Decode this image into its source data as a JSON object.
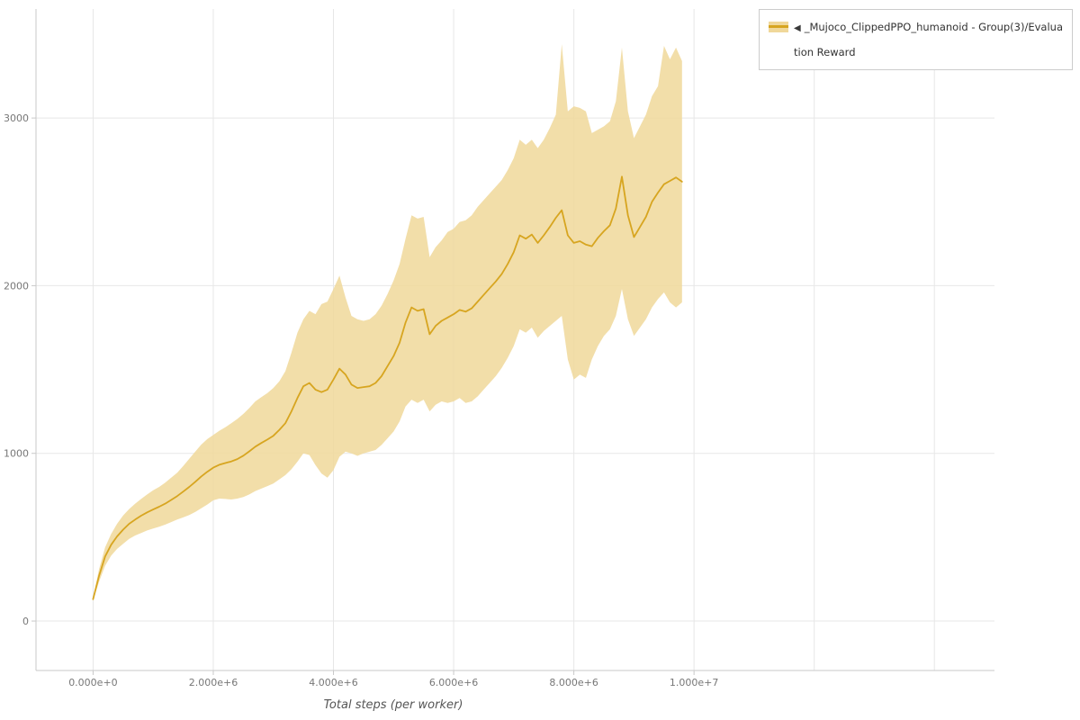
{
  "legend": {
    "marker": "◀",
    "label": "_Mujoco_ClippedPPO_humanoid - Group(3)/Evaluation Reward"
  },
  "chart_data": {
    "type": "line",
    "title": "",
    "xlabel": "Total steps (per worker)",
    "ylabel": "",
    "legend_position": "top-right-outside",
    "grid_on": true,
    "x_unit_note": "x values stored in millions of steps",
    "xlim_e6": [
      -0.95,
      15.0
    ],
    "ylim": [
      -295,
      3650
    ],
    "x_ticks": [
      {
        "v_e6": 0,
        "label": "0.000e+0"
      },
      {
        "v_e6": 2,
        "label": "2.000e+6"
      },
      {
        "v_e6": 4,
        "label": "4.000e+6"
      },
      {
        "v_e6": 6,
        "label": "6.000e+6"
      },
      {
        "v_e6": 8,
        "label": "8.000e+6"
      },
      {
        "v_e6": 10,
        "label": "1.000e+7"
      }
    ],
    "y_ticks": [
      {
        "v": 0,
        "label": "0"
      },
      {
        "v": 1000,
        "label": "1000"
      },
      {
        "v": 2000,
        "label": "2000"
      },
      {
        "v": 3000,
        "label": "3000"
      }
    ],
    "grid": {
      "x_e6": [
        0,
        2,
        4,
        6,
        8,
        10,
        12,
        14
      ],
      "y": [
        0,
        1000,
        2000,
        3000
      ]
    },
    "colors": {
      "line": "#d7a520",
      "band": "#f0d89a",
      "grid": "#e7e7e7",
      "axis": "#c9c9c9",
      "tick_text": "#777777"
    },
    "band_opacity": 0.85,
    "series": [
      {
        "name": "_Mujoco_ClippedPPO_humanoid - Group(3)/Evaluation Reward",
        "x_e6": [
          0,
          0.1,
          0.2,
          0.3,
          0.4,
          0.5,
          0.6,
          0.7,
          0.8,
          0.9,
          1,
          1.1,
          1.2,
          1.3,
          1.4,
          1.5,
          1.6,
          1.7,
          1.8,
          1.9,
          2,
          2.1,
          2.2,
          2.3,
          2.4,
          2.5,
          2.6,
          2.7,
          2.8,
          2.9,
          3,
          3.1,
          3.2,
          3.3,
          3.4,
          3.5,
          3.6,
          3.7,
          3.8,
          3.9,
          4,
          4.1,
          4.2,
          4.3,
          4.4,
          4.5,
          4.6,
          4.7,
          4.8,
          4.9,
          5,
          5.1,
          5.2,
          5.3,
          5.4,
          5.5,
          5.6,
          5.7,
          5.8,
          5.9,
          6,
          6.1,
          6.2,
          6.3,
          6.4,
          6.5,
          6.6,
          6.7,
          6.8,
          6.9,
          7,
          7.1,
          7.2,
          7.3,
          7.4,
          7.5,
          7.6,
          7.7,
          7.8,
          7.9,
          8,
          8.1,
          8.2,
          8.3,
          8.4,
          8.5,
          8.6,
          8.7,
          8.8,
          8.9,
          9,
          9.1,
          9.2,
          9.3,
          9.4,
          9.5,
          9.6,
          9.7,
          9.8
        ],
        "mean": [
          130,
          270,
          385,
          455,
          505,
          545,
          580,
          605,
          628,
          648,
          665,
          682,
          700,
          722,
          745,
          772,
          800,
          830,
          862,
          890,
          915,
          932,
          942,
          952,
          966,
          986,
          1012,
          1040,
          1062,
          1082,
          1105,
          1140,
          1180,
          1250,
          1330,
          1400,
          1420,
          1380,
          1365,
          1380,
          1440,
          1505,
          1470,
          1410,
          1390,
          1395,
          1400,
          1420,
          1460,
          1520,
          1580,
          1660,
          1780,
          1870,
          1850,
          1860,
          1710,
          1760,
          1790,
          1810,
          1830,
          1855,
          1845,
          1865,
          1905,
          1945,
          1985,
          2025,
          2070,
          2130,
          2200,
          2300,
          2280,
          2305,
          2255,
          2300,
          2350,
          2405,
          2450,
          2300,
          2255,
          2265,
          2245,
          2235,
          2285,
          2325,
          2360,
          2460,
          2650,
          2420,
          2290,
          2350,
          2410,
          2500,
          2555,
          2605,
          2625,
          2645,
          2620
        ],
        "band_lower": [
          120,
          235,
          330,
          390,
          430,
          460,
          490,
          510,
          525,
          540,
          552,
          562,
          575,
          590,
          605,
          618,
          632,
          650,
          672,
          695,
          720,
          730,
          728,
          725,
          730,
          740,
          755,
          775,
          790,
          805,
          820,
          845,
          870,
          905,
          950,
          1000,
          990,
          930,
          880,
          855,
          900,
          980,
          1010,
          1000,
          985,
          1000,
          1010,
          1020,
          1050,
          1090,
          1130,
          1190,
          1280,
          1320,
          1300,
          1320,
          1250,
          1290,
          1310,
          1300,
          1310,
          1330,
          1300,
          1310,
          1340,
          1380,
          1420,
          1460,
          1510,
          1570,
          1640,
          1740,
          1720,
          1750,
          1690,
          1730,
          1760,
          1790,
          1820,
          1560,
          1440,
          1470,
          1450,
          1560,
          1640,
          1700,
          1740,
          1820,
          1980,
          1800,
          1700,
          1750,
          1800,
          1870,
          1920,
          1960,
          1900,
          1870,
          1900
        ],
        "band_upper": [
          140,
          310,
          440,
          520,
          580,
          630,
          668,
          700,
          728,
          755,
          780,
          800,
          825,
          855,
          885,
          925,
          968,
          1010,
          1052,
          1085,
          1110,
          1135,
          1155,
          1180,
          1205,
          1235,
          1270,
          1310,
          1335,
          1360,
          1390,
          1430,
          1490,
          1600,
          1720,
          1800,
          1850,
          1830,
          1890,
          1905,
          1980,
          2060,
          1930,
          1820,
          1800,
          1790,
          1800,
          1830,
          1880,
          1950,
          2030,
          2130,
          2280,
          2420,
          2400,
          2410,
          2170,
          2230,
          2270,
          2320,
          2340,
          2380,
          2390,
          2420,
          2470,
          2510,
          2550,
          2590,
          2630,
          2690,
          2760,
          2870,
          2840,
          2870,
          2820,
          2870,
          2940,
          3020,
          3440,
          3040,
          3070,
          3060,
          3040,
          2910,
          2930,
          2950,
          2980,
          3100,
          3420,
          3040,
          2880,
          2950,
          3020,
          3130,
          3190,
          3430,
          3350,
          3420,
          3340
        ]
      }
    ]
  }
}
